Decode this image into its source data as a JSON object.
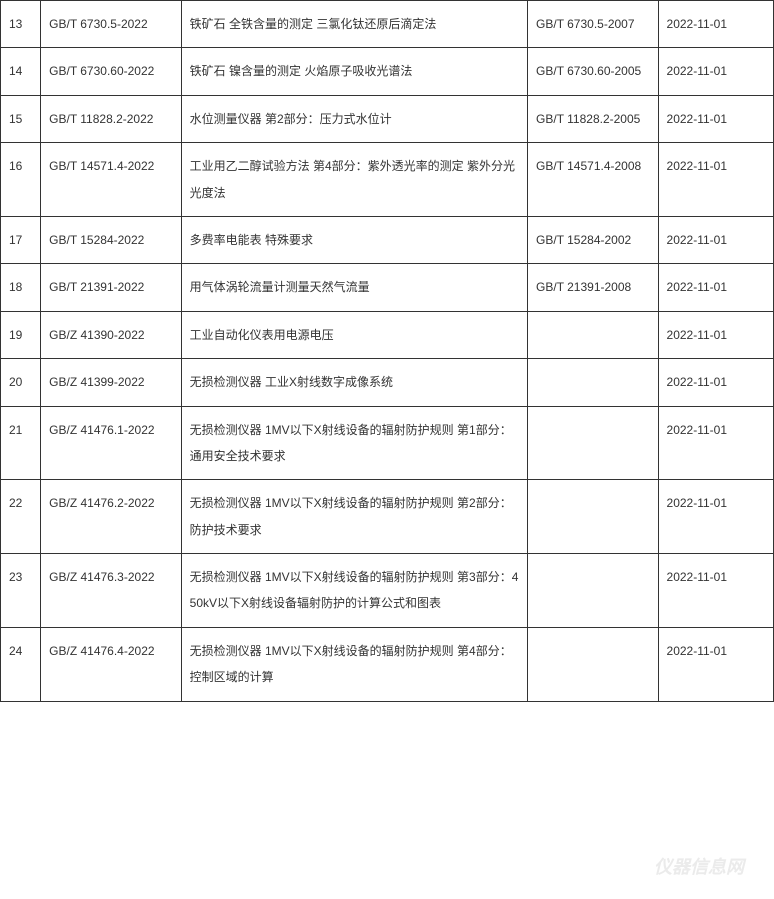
{
  "table": {
    "columns": {
      "widths": [
        40,
        140,
        345,
        130,
        115
      ],
      "alignment": [
        "left",
        "left",
        "left",
        "left",
        "left"
      ]
    },
    "cell_style": {
      "border_color": "#333333",
      "border_width": 1,
      "text_color": "#333333",
      "font_size": 12,
      "line_height": 2.2,
      "padding": "10px 8px"
    },
    "background_color": "#ffffff",
    "rows": [
      {
        "num": "13",
        "code": "GB/T 6730.5-2022",
        "desc": "铁矿石 全铁含量的测定 三氯化钛还原后滴定法",
        "replaced": "GB/T 6730.5-2007",
        "date": "2022-11-01"
      },
      {
        "num": "14",
        "code": "GB/T 6730.60-2022",
        "desc": "铁矿石 镍含量的测定 火焰原子吸收光谱法",
        "replaced": "GB/T 6730.60-2005",
        "date": "2022-11-01"
      },
      {
        "num": "15",
        "code": "GB/T 11828.2-2022",
        "desc": "水位测量仪器 第2部分：压力式水位计",
        "replaced": "GB/T 11828.2-2005",
        "date": "2022-11-01"
      },
      {
        "num": "16",
        "code": "GB/T 14571.4-2022",
        "desc": "工业用乙二醇试验方法 第4部分：紫外透光率的测定 紫外分光光度法",
        "replaced": "GB/T 14571.4-2008",
        "date": "2022-11-01"
      },
      {
        "num": "17",
        "code": "GB/T 15284-2022",
        "desc": "多费率电能表 特殊要求",
        "replaced": "GB/T 15284-2002",
        "date": "2022-11-01"
      },
      {
        "num": "18",
        "code": "GB/T 21391-2022",
        "desc": "用气体涡轮流量计测量天然气流量",
        "replaced": "GB/T 21391-2008",
        "date": "2022-11-01"
      },
      {
        "num": "19",
        "code": "GB/Z 41390-2022",
        "desc": "工业自动化仪表用电源电压",
        "replaced": "",
        "date": "2022-11-01"
      },
      {
        "num": "20",
        "code": "GB/Z 41399-2022",
        "desc": "无损检测仪器 工业X射线数字成像系统",
        "replaced": "",
        "date": "2022-11-01"
      },
      {
        "num": "21",
        "code": "GB/Z 41476.1-2022",
        "desc": "无损检测仪器 1MV以下X射线设备的辐射防护规则 第1部分：通用安全技术要求",
        "replaced": "",
        "date": "2022-11-01"
      },
      {
        "num": "22",
        "code": "GB/Z 41476.2-2022",
        "desc": "无损检测仪器 1MV以下X射线设备的辐射防护规则 第2部分：防护技术要求",
        "replaced": "",
        "date": "2022-11-01"
      },
      {
        "num": "23",
        "code": "GB/Z 41476.3-2022",
        "desc": "无损检测仪器 1MV以下X射线设备的辐射防护规则 第3部分：450kV以下X射线设备辐射防护的计算公式和图表",
        "replaced": "",
        "date": "2022-11-01"
      },
      {
        "num": "24",
        "code": "GB/Z 41476.4-2022",
        "desc": "无损检测仪器 1MV以下X射线设备的辐射防护规则 第4部分：控制区域的计算",
        "replaced": "",
        "date": "2022-11-01"
      }
    ]
  },
  "watermark": {
    "text": "仪器信息网",
    "color": "#cccccc",
    "opacity": 0.4,
    "font_size": 18
  }
}
